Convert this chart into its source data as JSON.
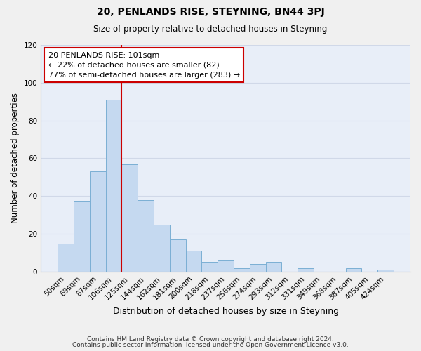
{
  "title": "20, PENLANDS RISE, STEYNING, BN44 3PJ",
  "subtitle": "Size of property relative to detached houses in Steyning",
  "xlabel": "Distribution of detached houses by size in Steyning",
  "ylabel": "Number of detached properties",
  "bar_labels": [
    "50sqm",
    "69sqm",
    "87sqm",
    "106sqm",
    "125sqm",
    "144sqm",
    "162sqm",
    "181sqm",
    "200sqm",
    "218sqm",
    "237sqm",
    "256sqm",
    "274sqm",
    "293sqm",
    "312sqm",
    "331sqm",
    "349sqm",
    "368sqm",
    "387sqm",
    "405sqm",
    "424sqm"
  ],
  "bar_values": [
    15,
    37,
    53,
    91,
    57,
    38,
    25,
    17,
    11,
    5,
    6,
    2,
    4,
    5,
    0,
    2,
    0,
    0,
    2,
    0,
    1
  ],
  "bar_color": "#c5d9f0",
  "bar_edge_color": "#7bafd4",
  "vline_color": "#cc0000",
  "annotation_text": "20 PENLANDS RISE: 101sqm\n← 22% of detached houses are smaller (82)\n77% of semi-detached houses are larger (283) →",
  "annotation_box_color": "#ffffff",
  "annotation_box_edge": "#cc0000",
  "ylim": [
    0,
    120
  ],
  "yticks": [
    0,
    20,
    40,
    60,
    80,
    100,
    120
  ],
  "footer1": "Contains HM Land Registry data © Crown copyright and database right 2024.",
  "footer2": "Contains public sector information licensed under the Open Government Licence v3.0.",
  "bg_color": "#f0f0f0",
  "grid_color": "#d0d8e8",
  "plot_bg_color": "#e8eef8"
}
